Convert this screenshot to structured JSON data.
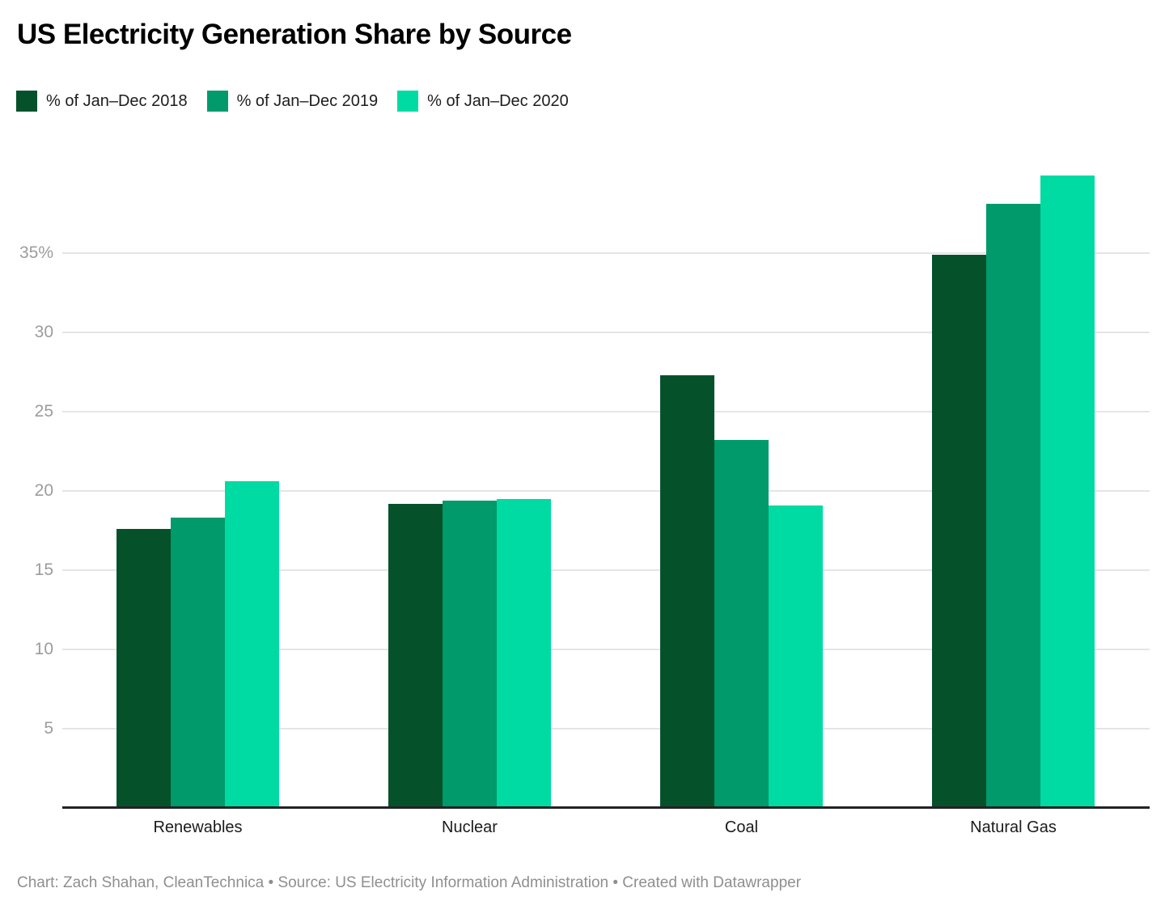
{
  "title": "US Electricity Generation Share by Source",
  "legend": [
    {
      "label": "% of Jan–Dec 2018",
      "color": "#05522a"
    },
    {
      "label": "% of Jan–Dec 2019",
      "color": "#009a6b"
    },
    {
      "label": "% of Jan–Dec 2020",
      "color": "#00dba3"
    }
  ],
  "footer": "Chart: Zach Shahan, CleanTechnica • Source: US Electricity Information Administration • Created with Datawrapper",
  "chart_data": {
    "type": "bar",
    "title": "US Electricity Generation Share by Source",
    "categories": [
      "Renewables",
      "Nuclear",
      "Coal",
      "Natural Gas"
    ],
    "series": [
      {
        "name": "% of Jan–Dec 2018",
        "color": "#05522a",
        "values": [
          17.6,
          19.2,
          27.3,
          34.9
        ]
      },
      {
        "name": "% of Jan–Dec 2019",
        "color": "#009a6b",
        "values": [
          18.3,
          19.4,
          23.2,
          38.1
        ]
      },
      {
        "name": "% of Jan–Dec 2020",
        "color": "#00dba3",
        "values": [
          20.6,
          19.5,
          19.1,
          39.9
        ]
      }
    ],
    "xlabel": "",
    "ylabel": "",
    "ylim": [
      0,
      41
    ],
    "y_ticks": [
      5,
      10,
      15,
      20,
      25,
      30,
      35
    ],
    "y_tick_labels": [
      "5",
      "10",
      "15",
      "20",
      "25",
      "30",
      "35%"
    ],
    "grid": true,
    "legend_position": "top",
    "colors": {
      "grid": "#e5e5e5",
      "axis_line": "#232323",
      "tick_text": "#9c9c9c",
      "category_text": "#1b1b1b",
      "footer_text": "#8f8f8f"
    }
  }
}
